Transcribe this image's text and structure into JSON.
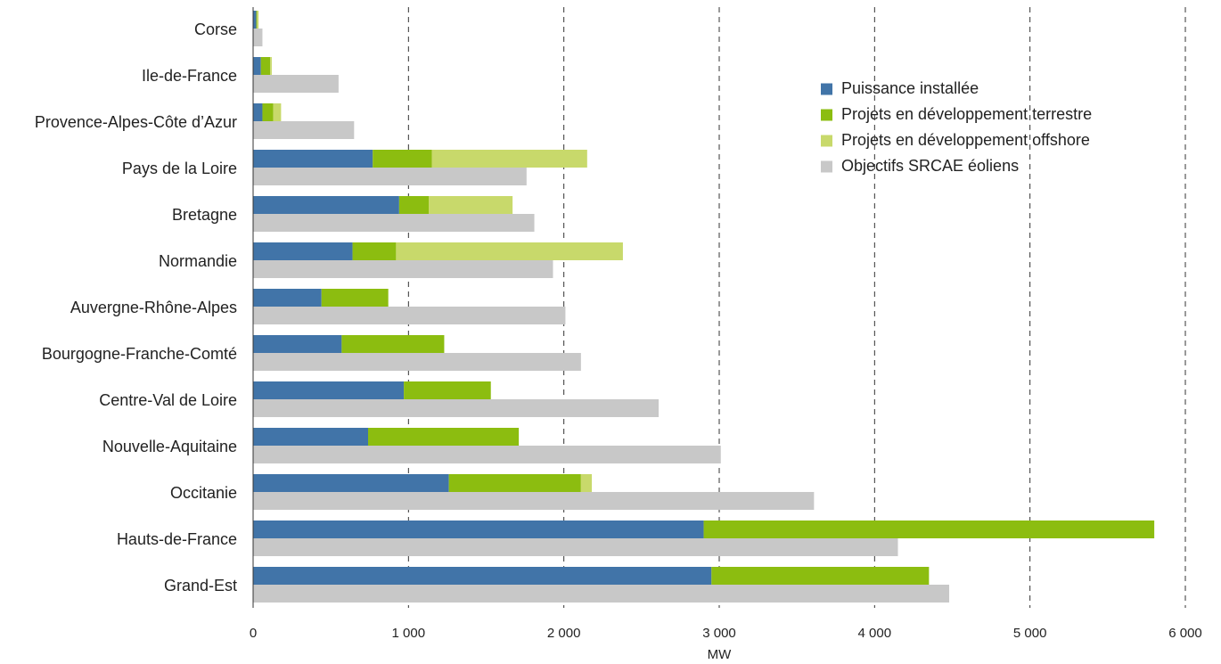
{
  "chart_data": {
    "type": "bar",
    "orientation": "horizontal",
    "title": "",
    "xlabel": "MW",
    "ylabel": "",
    "xlim": [
      0,
      6000
    ],
    "x_ticks": [
      0,
      1000,
      2000,
      3000,
      4000,
      5000,
      6000
    ],
    "x_tick_labels": [
      "0",
      "1 000",
      "2 000",
      "3 000",
      "4 000",
      "5 000",
      "6 000"
    ],
    "grid": "vertical dashed",
    "legend_position": "top-right",
    "categories": [
      "Corse",
      "Ile-de-France",
      "Provence-Alpes-Côte d’Azur",
      "Pays de la Loire",
      "Bretagne",
      "Normandie",
      "Auvergne-Rhône-Alpes",
      "Bourgogne-Franche-Comté",
      "Centre-Val de Loire",
      "Nouvelle-Aquitaine",
      "Occitanie",
      "Hauts-de-France",
      "Grand-Est"
    ],
    "series": [
      {
        "name": "Puissance installée",
        "color": "#4174a8",
        "stack": "projects",
        "values": [
          20,
          50,
          60,
          770,
          940,
          640,
          440,
          570,
          970,
          740,
          1260,
          2900,
          2950
        ]
      },
      {
        "name": "Projets en développement terrestre",
        "color": "#8cbd10",
        "stack": "projects",
        "values": [
          5,
          60,
          70,
          380,
          190,
          280,
          430,
          660,
          560,
          970,
          850,
          2900,
          1400
        ]
      },
      {
        "name": "Projets en développement offshore",
        "color": "#c8d96b",
        "stack": "projects",
        "values": [
          10,
          10,
          50,
          1000,
          540,
          1460,
          0,
          0,
          0,
          0,
          70,
          0,
          0
        ]
      },
      {
        "name": "Objectifs SRCAE éoliens",
        "color": "#c8c8c8",
        "stack": "target",
        "values": [
          60,
          550,
          650,
          1760,
          1810,
          1930,
          2010,
          2110,
          2610,
          3010,
          3610,
          4150,
          4480
        ]
      }
    ]
  }
}
